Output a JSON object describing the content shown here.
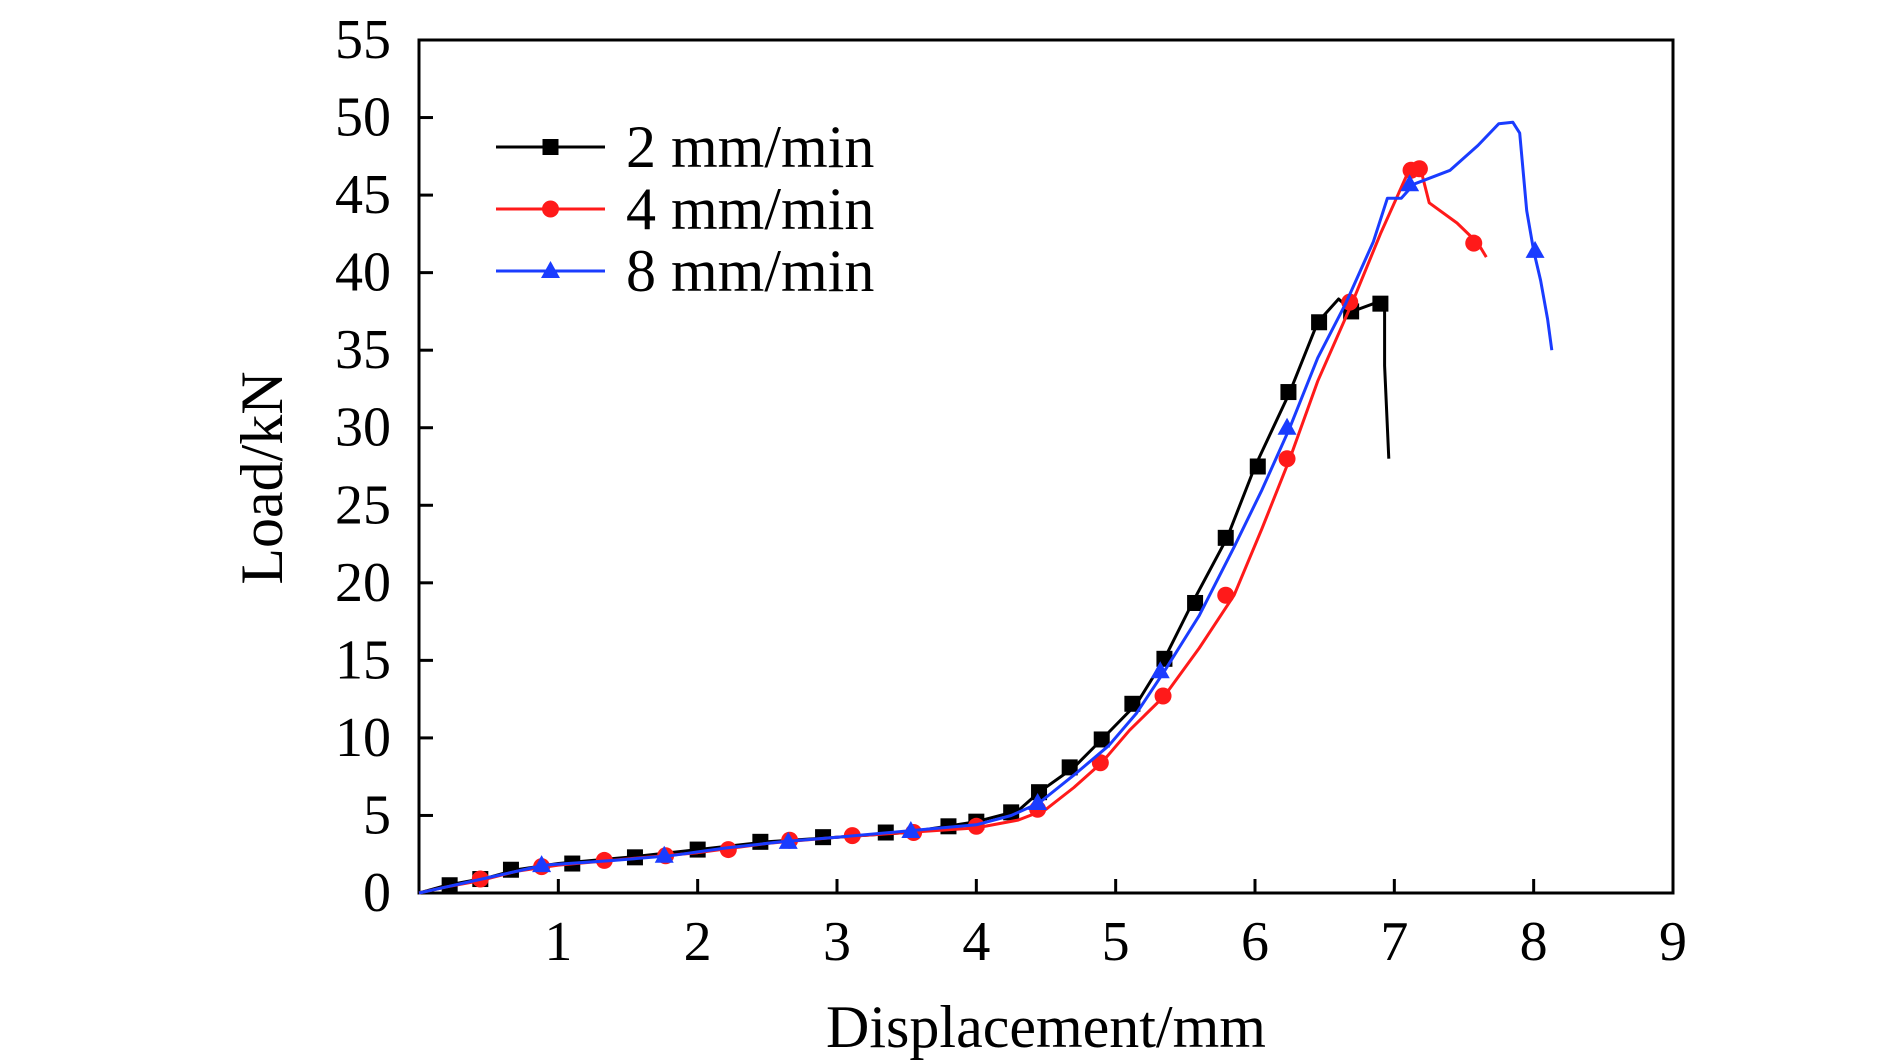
{
  "chart_data": {
    "type": "line",
    "title": "",
    "xlabel": "Displacement/mm",
    "ylabel": "Load/kN",
    "xlim": [
      0,
      9
    ],
    "ylim": [
      0,
      55
    ],
    "x_ticks": [
      1,
      2,
      3,
      4,
      5,
      6,
      7,
      8,
      9
    ],
    "y_ticks": [
      0,
      5,
      10,
      15,
      20,
      25,
      30,
      35,
      40,
      45,
      50,
      55
    ],
    "x_tick_labels": [
      "1",
      "2",
      "3",
      "4",
      "5",
      "6",
      "7",
      "8",
      "9"
    ],
    "y_tick_labels": [
      "0",
      "5",
      "10",
      "15",
      "20",
      "25",
      "30",
      "35",
      "40",
      "45",
      "50",
      "55"
    ],
    "grid": false,
    "legend_position": "top-left",
    "series": [
      {
        "name": "2 mm/min",
        "color": "#000000",
        "marker": "square",
        "line": [
          [
            0,
            0
          ],
          [
            0.2,
            0.5
          ],
          [
            0.5,
            1.0
          ],
          [
            0.7,
            1.5
          ],
          [
            1.0,
            1.9
          ],
          [
            1.5,
            2.3
          ],
          [
            2.0,
            2.8
          ],
          [
            2.5,
            3.3
          ],
          [
            3.0,
            3.6
          ],
          [
            3.5,
            3.9
          ],
          [
            4.0,
            4.6
          ],
          [
            4.3,
            5.3
          ],
          [
            4.45,
            6.5
          ],
          [
            4.7,
            8.1
          ],
          [
            4.9,
            9.9
          ],
          [
            5.15,
            12.2
          ],
          [
            5.35,
            15.1
          ],
          [
            5.55,
            18.7
          ],
          [
            5.8,
            22.9
          ],
          [
            6.0,
            27.5
          ],
          [
            6.25,
            32.3
          ],
          [
            6.45,
            36.8
          ],
          [
            6.6,
            38.3
          ],
          [
            6.7,
            37.5
          ],
          [
            6.85,
            38.0
          ],
          [
            6.93,
            38.0
          ],
          [
            6.93,
            34.0
          ],
          [
            6.96,
            28.0
          ]
        ],
        "markers": [
          [
            0.22,
            0.5
          ],
          [
            0.44,
            0.9
          ],
          [
            0.66,
            1.5
          ],
          [
            1.1,
            1.9
          ],
          [
            1.55,
            2.3
          ],
          [
            2.0,
            2.8
          ],
          [
            2.45,
            3.3
          ],
          [
            2.9,
            3.6
          ],
          [
            3.35,
            3.9
          ],
          [
            3.8,
            4.3
          ],
          [
            4.0,
            4.6
          ],
          [
            4.25,
            5.2
          ],
          [
            4.45,
            6.5
          ],
          [
            4.67,
            8.1
          ],
          [
            4.9,
            9.9
          ],
          [
            5.12,
            12.2
          ],
          [
            5.35,
            15.1
          ],
          [
            5.57,
            18.7
          ],
          [
            5.79,
            22.9
          ],
          [
            6.02,
            27.5
          ],
          [
            6.24,
            32.3
          ],
          [
            6.46,
            36.8
          ],
          [
            6.69,
            37.5
          ],
          [
            6.9,
            38.0
          ]
        ]
      },
      {
        "name": "4 mm/min",
        "color": "#ff1a1a",
        "marker": "circle",
        "line": [
          [
            0,
            0
          ],
          [
            0.2,
            0.4
          ],
          [
            0.44,
            0.8
          ],
          [
            0.7,
            1.4
          ],
          [
            1.0,
            1.8
          ],
          [
            1.5,
            2.2
          ],
          [
            2.0,
            2.6
          ],
          [
            2.5,
            3.2
          ],
          [
            3.0,
            3.6
          ],
          [
            3.5,
            3.9
          ],
          [
            4.0,
            4.2
          ],
          [
            4.3,
            4.7
          ],
          [
            4.5,
            5.4
          ],
          [
            4.7,
            6.8
          ],
          [
            4.9,
            8.4
          ],
          [
            5.1,
            10.5
          ],
          [
            5.35,
            12.7
          ],
          [
            5.6,
            15.8
          ],
          [
            5.85,
            19.2
          ],
          [
            6.05,
            23.5
          ],
          [
            6.25,
            28.0
          ],
          [
            6.45,
            33.0
          ],
          [
            6.7,
            38.1
          ],
          [
            6.9,
            42.5
          ],
          [
            7.1,
            46.5
          ],
          [
            7.18,
            47.0
          ],
          [
            7.25,
            44.5
          ],
          [
            7.45,
            43.2
          ],
          [
            7.6,
            41.9
          ],
          [
            7.66,
            41.0
          ]
        ],
        "markers": [
          [
            0.44,
            0.9
          ],
          [
            0.88,
            1.7
          ],
          [
            1.33,
            2.1
          ],
          [
            1.77,
            2.4
          ],
          [
            2.22,
            2.8
          ],
          [
            2.66,
            3.4
          ],
          [
            3.11,
            3.7
          ],
          [
            3.55,
            3.9
          ],
          [
            4.0,
            4.3
          ],
          [
            4.44,
            5.4
          ],
          [
            4.89,
            8.4
          ],
          [
            5.34,
            12.7
          ],
          [
            5.79,
            19.2
          ],
          [
            6.23,
            28.0
          ],
          [
            6.68,
            38.1
          ],
          [
            7.12,
            46.6
          ],
          [
            7.18,
            46.7
          ],
          [
            7.57,
            41.9
          ]
        ]
      },
      {
        "name": "8 mm/min",
        "color": "#1a3cff",
        "marker": "triangle",
        "line": [
          [
            0,
            0
          ],
          [
            0.2,
            0.4
          ],
          [
            0.5,
            1.0
          ],
          [
            0.9,
            1.8
          ],
          [
            1.4,
            2.1
          ],
          [
            1.8,
            2.4
          ],
          [
            2.2,
            2.9
          ],
          [
            2.6,
            3.3
          ],
          [
            3.0,
            3.6
          ],
          [
            3.5,
            4.0
          ],
          [
            4.0,
            4.4
          ],
          [
            4.25,
            5.0
          ],
          [
            4.45,
            5.8
          ],
          [
            4.7,
            7.6
          ],
          [
            4.95,
            9.5
          ],
          [
            5.15,
            11.6
          ],
          [
            5.35,
            14.3
          ],
          [
            5.6,
            17.9
          ],
          [
            5.85,
            22.3
          ],
          [
            6.05,
            26.0
          ],
          [
            6.25,
            30.0
          ],
          [
            6.45,
            34.5
          ],
          [
            6.65,
            38.0
          ],
          [
            6.85,
            42.0
          ],
          [
            6.95,
            44.8
          ],
          [
            7.05,
            44.8
          ],
          [
            7.14,
            45.7
          ],
          [
            7.4,
            46.6
          ],
          [
            7.6,
            48.2
          ],
          [
            7.75,
            49.6
          ],
          [
            7.85,
            49.7
          ],
          [
            7.9,
            49.0
          ],
          [
            7.95,
            44.0
          ],
          [
            8.0,
            41.4
          ],
          [
            8.05,
            39.5
          ],
          [
            8.1,
            37.0
          ],
          [
            8.13,
            35.0
          ]
        ],
        "markers": [
          [
            0.88,
            1.8
          ],
          [
            1.76,
            2.4
          ],
          [
            2.65,
            3.3
          ],
          [
            3.53,
            4.0
          ],
          [
            4.44,
            5.8
          ],
          [
            5.32,
            14.3
          ],
          [
            6.23,
            30.0
          ],
          [
            7.11,
            45.7
          ],
          [
            8.01,
            41.4
          ]
        ]
      }
    ]
  }
}
